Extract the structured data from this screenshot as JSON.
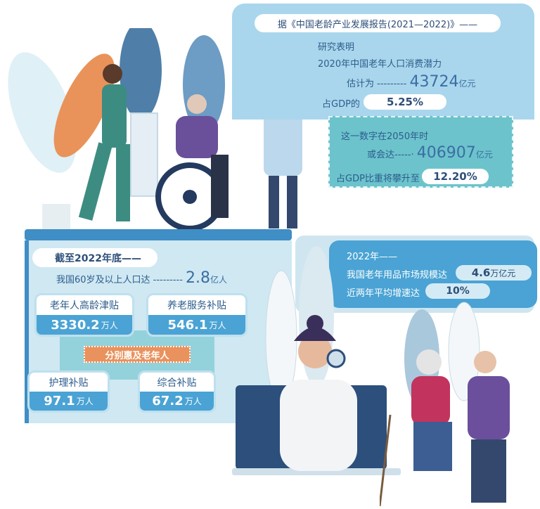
{
  "top_panel": {
    "source": "据《中国老龄产业发展报告(2021—2022)》——",
    "line1": "研究表明",
    "line2": "2020年中国老年人口消费潜力",
    "estimate_label": "估计为 ---------",
    "estimate_value": "43724",
    "estimate_unit": "亿元",
    "gdp_label": "占GDP的",
    "gdp_value": "5.25%"
  },
  "future_panel": {
    "line1": "这一数字在2050年时",
    "reach_label": "或会达-----·",
    "reach_value": "406907",
    "reach_unit": "亿元",
    "gdp_label": "占GDP比重将攀升至",
    "gdp_value": "12.20%"
  },
  "population_panel": {
    "header": "截至2022年底——",
    "line": "我国60岁及以上人口达 ---------",
    "value": "2.8",
    "unit": "亿人",
    "connector": "分别惠及老年人",
    "boxes": [
      {
        "label": "老年人高龄津贴",
        "value": "3330.2",
        "unit": "万人"
      },
      {
        "label": "养老服务补贴",
        "value": "546.1",
        "unit": "万人"
      },
      {
        "label": "护理补贴",
        "value": "97.1",
        "unit": "万人"
      },
      {
        "label": "综合补贴",
        "value": "67.2",
        "unit": "万人"
      }
    ]
  },
  "market_panel": {
    "header": "2022年——",
    "market_label": "我国老年用品市场规模达",
    "market_value": "4.6",
    "market_unit": "万亿元",
    "growth_label": "近两年平均增速达",
    "growth_value": "10%"
  },
  "colors": {
    "panel": "#a9d6ec",
    "teal": "#6cc3cc",
    "blue": "#4aa3d4",
    "orange": "#e9925d",
    "text": "#2d5d8c"
  }
}
